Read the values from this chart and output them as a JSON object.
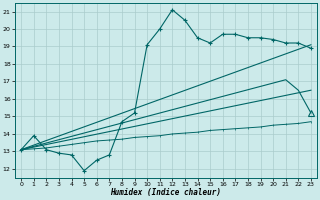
{
  "xlabel": "Humidex (Indice chaleur)",
  "xlim": [
    -0.5,
    23.5
  ],
  "ylim": [
    11.5,
    21.5
  ],
  "yticks": [
    12,
    13,
    14,
    15,
    16,
    17,
    18,
    19,
    20,
    21
  ],
  "xticks": [
    0,
    1,
    2,
    3,
    4,
    5,
    6,
    7,
    8,
    9,
    10,
    11,
    12,
    13,
    14,
    15,
    16,
    17,
    18,
    19,
    20,
    21,
    22,
    23
  ],
  "bg_color": "#cceaea",
  "line_color": "#006666",
  "grid_color": "#aacccc",
  "line1_x": [
    0,
    1,
    2,
    3,
    4,
    5,
    6,
    7,
    8,
    9,
    10,
    11,
    12,
    13,
    14,
    15,
    16,
    17,
    18,
    19,
    20,
    21,
    22,
    23
  ],
  "line1_y": [
    13.1,
    13.9,
    13.1,
    12.9,
    12.8,
    11.9,
    12.5,
    12.8,
    14.7,
    15.2,
    19.1,
    20.0,
    21.1,
    20.5,
    19.5,
    19.2,
    19.7,
    19.7,
    19.5,
    19.5,
    19.4,
    19.2,
    19.2,
    18.9
  ],
  "line2_x": [
    0,
    23
  ],
  "line2_y": [
    13.1,
    19.1
  ],
  "line3_x": [
    0,
    23
  ],
  "line3_y": [
    13.1,
    16.5
  ],
  "line4_x": [
    0,
    1,
    2,
    3,
    4,
    5,
    6,
    7,
    8,
    9,
    10,
    11,
    12,
    13,
    14,
    15,
    16,
    17,
    18,
    19,
    20,
    21,
    22,
    23
  ],
  "line4_y": [
    13.1,
    13.15,
    13.2,
    13.3,
    13.4,
    13.5,
    13.6,
    13.65,
    13.7,
    13.8,
    13.85,
    13.9,
    14.0,
    14.05,
    14.1,
    14.2,
    14.25,
    14.3,
    14.35,
    14.4,
    14.5,
    14.55,
    14.6,
    14.7
  ],
  "line5_x": [
    0,
    21,
    22,
    23
  ],
  "line5_y": [
    13.1,
    17.1,
    16.5,
    15.2
  ],
  "line6_x": [
    22,
    23
  ],
  "line6_y": [
    15.2,
    15.2
  ]
}
